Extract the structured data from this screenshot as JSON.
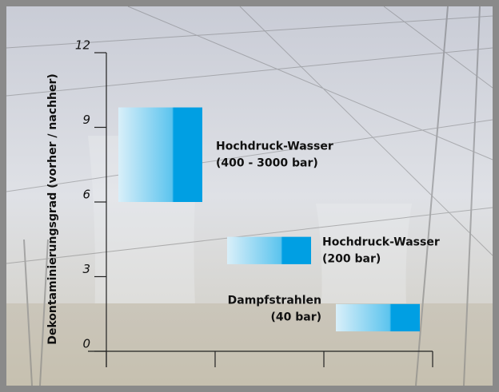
{
  "chart_data": {
    "type": "floating-bar",
    "y_label": "Dekontaminierungsgrad (vorher / nachher)",
    "categories": [
      null,
      null,
      null
    ],
    "bar_labels": [
      [
        "Hochdruck-Wasser",
        "(400 - 3000 bar)"
      ],
      [
        "Hochdruck-Wasser",
        "(200 bar)"
      ],
      [
        "Dampfstrahlen",
        "(40 bar)"
      ]
    ],
    "low": [
      6,
      3.5,
      0.8
    ],
    "high": [
      9.8,
      4.6,
      1.9
    ],
    "colors": [
      "#d9eff9",
      "#009fe3"
    ],
    "ylim": [
      0,
      12
    ],
    "yticks": [
      0,
      3,
      6,
      9,
      12
    ]
  }
}
